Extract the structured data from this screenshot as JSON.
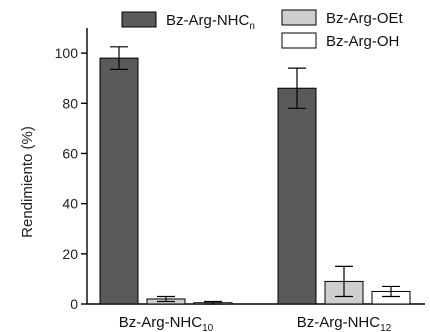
{
  "chart_data": {
    "type": "bar",
    "ylabel": "Rendimiento (%)",
    "ylim": [
      0,
      110
    ],
    "yticks": [
      0,
      20,
      40,
      60,
      80,
      100
    ],
    "grid": false,
    "legend": "top",
    "categories": [
      {
        "main": "Bz-Arg-NHC",
        "sub": "10"
      },
      {
        "main": "Bz-Arg-NHC",
        "sub": "12"
      }
    ],
    "series": [
      {
        "name": "Bz-Arg-NHC",
        "name_sub": "n",
        "color": "#5a5a5a",
        "values": [
          98,
          86
        ],
        "errors": [
          4.5,
          8
        ]
      },
      {
        "name": "Bz-Arg-OEt",
        "name_sub": "",
        "color": "#cfcfcf",
        "values": [
          2,
          9
        ],
        "errors": [
          1,
          6
        ]
      },
      {
        "name": "Bz-Arg-OH",
        "name_sub": "",
        "color": "#ffffff",
        "values": [
          0.5,
          5
        ],
        "errors": [
          0.5,
          2
        ]
      }
    ]
  }
}
